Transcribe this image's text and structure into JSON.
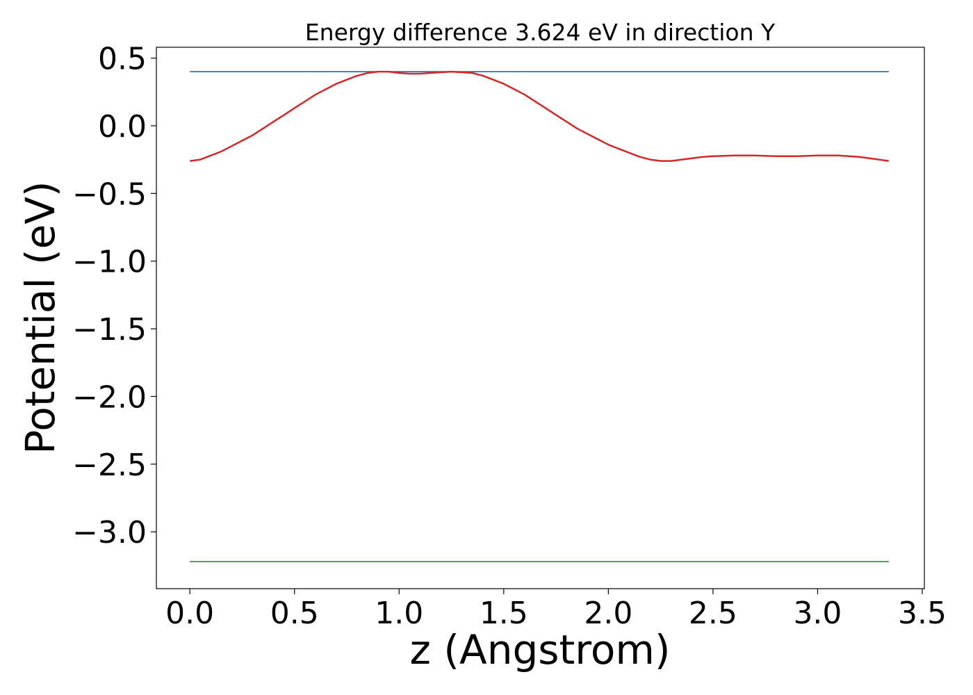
{
  "chart_data": {
    "type": "line",
    "title": "Energy difference 3.624 eV in direction Y",
    "xlabel": "z (Angstrom)",
    "ylabel": "Potential (eV)",
    "xlim": [
      -0.16,
      3.51
    ],
    "ylim": [
      -3.42,
      0.58
    ],
    "x_ticks": [
      "0.0",
      "0.5",
      "1.0",
      "1.5",
      "2.0",
      "2.5",
      "3.0",
      "3.5"
    ],
    "x_tick_values": [
      0.0,
      0.5,
      1.0,
      1.5,
      2.0,
      2.5,
      3.0,
      3.5
    ],
    "y_ticks": [
      "0.5",
      "0.0",
      "−0.5",
      "−1.0",
      "−1.5",
      "−2.0",
      "−2.5",
      "−3.0"
    ],
    "y_tick_values": [
      0.5,
      0.0,
      -0.5,
      -1.0,
      -1.5,
      -2.0,
      -2.5,
      -3.0
    ],
    "grid": false,
    "series": [
      {
        "color": "#1f77b4",
        "x": [
          0.0,
          3.34
        ],
        "y": [
          0.4,
          0.4
        ]
      },
      {
        "color": "#2ca02c",
        "x": [
          0.0,
          3.34
        ],
        "y": [
          -3.22,
          -3.22
        ]
      },
      {
        "color": "#d62728",
        "x": [
          0.0,
          0.05,
          0.1,
          0.15,
          0.2,
          0.25,
          0.3,
          0.35,
          0.4,
          0.45,
          0.5,
          0.55,
          0.6,
          0.65,
          0.7,
          0.75,
          0.8,
          0.85,
          0.9,
          0.95,
          1.0,
          1.05,
          1.1,
          1.15,
          1.2,
          1.25,
          1.3,
          1.35,
          1.4,
          1.45,
          1.5,
          1.55,
          1.6,
          1.65,
          1.7,
          1.75,
          1.8,
          1.85,
          1.9,
          1.95,
          2.0,
          2.05,
          2.1,
          2.15,
          2.2,
          2.25,
          2.3,
          2.35,
          2.4,
          2.45,
          2.5,
          2.6,
          2.7,
          2.8,
          2.9,
          3.0,
          3.1,
          3.2,
          3.34
        ],
        "y": [
          -0.26,
          -0.25,
          -0.22,
          -0.19,
          -0.15,
          -0.11,
          -0.07,
          -0.02,
          0.03,
          0.08,
          0.13,
          0.18,
          0.23,
          0.27,
          0.31,
          0.34,
          0.37,
          0.39,
          0.4,
          0.4,
          0.39,
          0.385,
          0.385,
          0.39,
          0.395,
          0.4,
          0.395,
          0.39,
          0.37,
          0.34,
          0.31,
          0.27,
          0.23,
          0.18,
          0.13,
          0.08,
          0.03,
          -0.02,
          -0.06,
          -0.1,
          -0.14,
          -0.17,
          -0.2,
          -0.23,
          -0.25,
          -0.26,
          -0.26,
          -0.25,
          -0.24,
          -0.23,
          -0.225,
          -0.22,
          -0.22,
          -0.225,
          -0.225,
          -0.22,
          -0.22,
          -0.23,
          -0.26
        ]
      }
    ]
  }
}
